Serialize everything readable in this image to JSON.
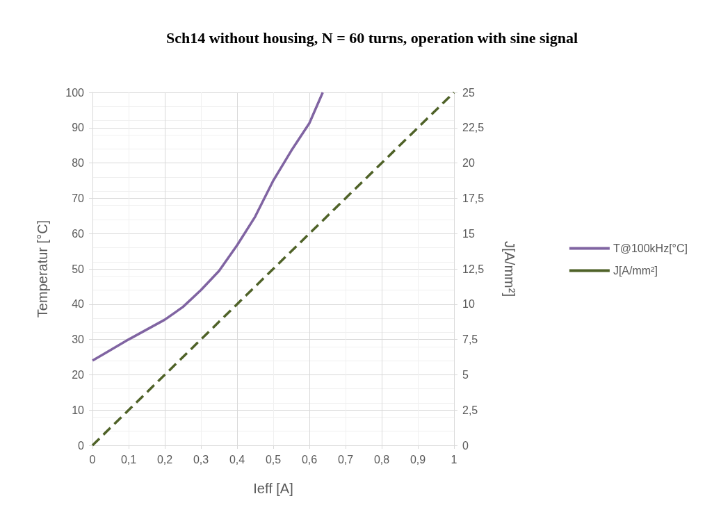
{
  "chart_data": {
    "type": "line",
    "title": "Sch14 without housing, N = 60 turns, operation with sine signal",
    "xlabel": "Ieff [A]",
    "ylabel": "Temperatur [°C]",
    "y2label": "J[A/mm²]",
    "xlim": [
      0,
      1
    ],
    "xticks": [
      {
        "value": 0,
        "label": "0"
      },
      {
        "value": 0.1,
        "label": "0,1"
      },
      {
        "value": 0.2,
        "label": "0,2"
      },
      {
        "value": 0.3,
        "label": "0,3"
      },
      {
        "value": 0.4,
        "label": "0,4"
      },
      {
        "value": 0.5,
        "label": "0,5"
      },
      {
        "value": 0.6,
        "label": "0,6"
      },
      {
        "value": 0.7,
        "label": "0,7"
      },
      {
        "value": 0.8,
        "label": "0,8"
      },
      {
        "value": 0.9,
        "label": "0,9"
      },
      {
        "value": 1,
        "label": "1"
      }
    ],
    "ylim": [
      0,
      100
    ],
    "yticks": [
      0,
      10,
      20,
      30,
      40,
      50,
      60,
      70,
      80,
      90,
      100
    ],
    "y2lim": [
      0,
      25
    ],
    "y2ticks": [
      0,
      {
        "value": 2.5,
        "label": "2,5"
      },
      5,
      {
        "value": 7.5,
        "label": "7,5"
      },
      10,
      {
        "value": 12.5,
        "label": "12,5"
      },
      15,
      {
        "value": 17.5,
        "label": "17,5"
      },
      20,
      {
        "value": 22.5,
        "label": "22,5"
      },
      25
    ],
    "grid": true,
    "legend": "right",
    "marker": "none",
    "series": [
      {
        "name": "T@100kHz[°C]",
        "color": "#8064a2",
        "line_style": "solid",
        "x": [
          0,
          0.1,
          0.2,
          0.25,
          0.3,
          0.35,
          0.4,
          0.45,
          0.5,
          0.55,
          0.6,
          0.637
        ],
        "values": [
          24,
          30,
          35.6,
          39.2,
          44,
          49.4,
          56.7,
          64.8,
          75,
          83.5,
          91.3,
          100
        ]
      },
      {
        "name": "J[A/mm²]",
        "color": "#4f6228",
        "line_style": "dashed",
        "axis": "y2",
        "x": [
          0,
          1
        ],
        "values": [
          0,
          25
        ]
      }
    ]
  }
}
